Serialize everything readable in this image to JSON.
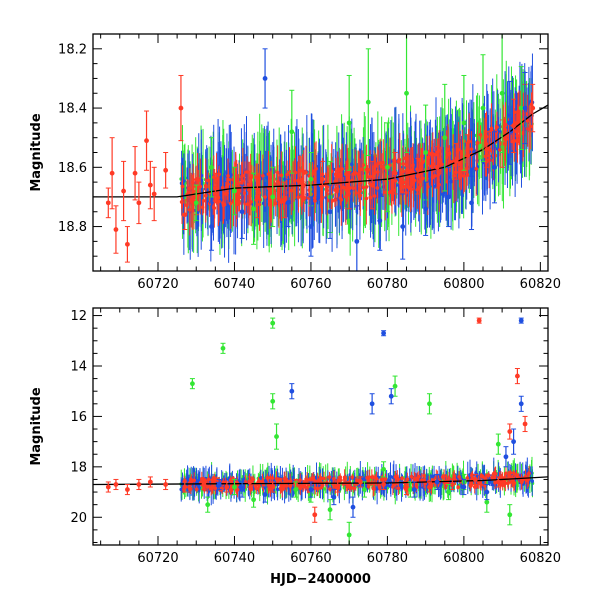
{
  "chart_data": [
    {
      "type": "scatter",
      "panel": "top",
      "title": "",
      "xlabel": "",
      "ylabel": "Magnitude",
      "xlim": [
        60703,
        60822
      ],
      "ylim": [
        18.95,
        18.15
      ],
      "y_inverted": true,
      "xticks": [
        60720,
        60740,
        60760,
        60780,
        60800,
        60820
      ],
      "xtick_labels": [
        "60720",
        "60740",
        "60760",
        "60780",
        "60800",
        "60820"
      ],
      "yticks": [
        18.2,
        18.4,
        18.6,
        18.8
      ],
      "ytick_labels": [
        "18.2",
        "18.4",
        "18.6",
        "18.8"
      ],
      "grid": false,
      "legend": "none",
      "colors": {
        "red": "#ff3a26",
        "green": "#33e633",
        "blue": "#1f4fe0",
        "model": "#000000"
      },
      "model_curve": {
        "x": [
          60703,
          60725,
          60740,
          60760,
          60780,
          60795,
          60805,
          60812,
          60818,
          60822
        ],
        "y": [
          18.7,
          18.7,
          18.67,
          18.66,
          18.64,
          18.6,
          18.54,
          18.48,
          18.42,
          18.39
        ]
      },
      "series": [
        {
          "color": "red",
          "x": [
            60707,
            60708,
            60709,
            60711,
            60712,
            60714,
            60715,
            60717,
            60718,
            60719,
            60722,
            60726,
            60727,
            60730,
            60735,
            60740,
            60746,
            60750,
            60753,
            60758,
            60763,
            60770,
            60776,
            60782,
            60788,
            60793,
            60798,
            60801,
            60806,
            60810,
            60813,
            60816,
            60818
          ],
          "y": [
            18.72,
            18.62,
            18.81,
            18.68,
            18.86,
            18.62,
            18.72,
            18.51,
            18.66,
            18.69,
            18.61,
            18.4,
            18.76,
            18.7,
            18.67,
            18.66,
            18.7,
            18.68,
            18.71,
            18.66,
            18.64,
            18.67,
            18.66,
            18.62,
            18.63,
            18.6,
            18.58,
            18.56,
            18.54,
            18.52,
            18.46,
            18.42,
            18.4
          ],
          "err": [
            0.05,
            0.12,
            0.08,
            0.1,
            0.06,
            0.09,
            0.07,
            0.1,
            0.08,
            0.09,
            0.06,
            0.11,
            0.05,
            0.06,
            0.05,
            0.06,
            0.07,
            0.05,
            0.06,
            0.05,
            0.06,
            0.07,
            0.08,
            0.07,
            0.06,
            0.07,
            0.06,
            0.07,
            0.06,
            0.08,
            0.09,
            0.1,
            0.08
          ]
        },
        {
          "color": "green",
          "x": [
            60730,
            60734,
            60740,
            60745,
            60750,
            60755,
            60760,
            60765,
            60770,
            60775,
            60780,
            60785,
            60790,
            60795,
            60800,
            60805,
            60810,
            60815
          ],
          "y": [
            18.72,
            18.6,
            18.68,
            18.74,
            18.7,
            18.48,
            18.64,
            18.7,
            18.45,
            18.38,
            18.6,
            18.35,
            18.55,
            18.5,
            18.45,
            18.4,
            18.35,
            18.4
          ],
          "err": [
            0.06,
            0.1,
            0.08,
            0.12,
            0.1,
            0.14,
            0.09,
            0.12,
            0.16,
            0.18,
            0.15,
            0.2,
            0.16,
            0.18,
            0.16,
            0.18,
            0.2,
            0.14
          ]
        },
        {
          "color": "blue",
          "x": [
            60734,
            60742,
            60748,
            60754,
            60760,
            60765,
            60772,
            60778,
            60784,
            60790,
            60796,
            60802,
            60808,
            60812,
            60816
          ],
          "y": [
            18.8,
            18.75,
            18.3,
            18.72,
            18.8,
            18.75,
            18.85,
            18.78,
            18.8,
            18.74,
            18.7,
            18.72,
            18.6,
            18.45,
            18.4
          ],
          "err": [
            0.08,
            0.09,
            0.1,
            0.08,
            0.1,
            0.09,
            0.12,
            0.1,
            0.11,
            0.09,
            0.1,
            0.09,
            0.12,
            0.14,
            0.12
          ]
        }
      ]
    },
    {
      "type": "scatter",
      "panel": "bottom",
      "title": "",
      "xlabel": "HJD−2400000",
      "ylabel": "Magnitude",
      "xlim": [
        60703,
        60822
      ],
      "ylim": [
        21.1,
        11.7
      ],
      "y_inverted": true,
      "xticks": [
        60720,
        60740,
        60760,
        60780,
        60800,
        60820
      ],
      "xtick_labels": [
        "60720",
        "60740",
        "60760",
        "60780",
        "60800",
        "60820"
      ],
      "yticks": [
        12,
        14,
        16,
        18,
        20
      ],
      "ytick_labels": [
        "12",
        "14",
        "16",
        "18",
        "20"
      ],
      "grid": false,
      "legend": "none",
      "colors": {
        "red": "#ff3a26",
        "green": "#33e633",
        "blue": "#1f4fe0",
        "model": "#000000"
      },
      "model_curve": {
        "x": [
          60703,
          60740,
          60780,
          60805,
          60822
        ],
        "y": [
          18.7,
          18.67,
          18.64,
          18.54,
          18.4
        ]
      },
      "series": [
        {
          "color": "red",
          "x": [
            60707,
            60709,
            60712,
            60715,
            60718,
            60722,
            60727,
            60732,
            60738,
            60744,
            60750,
            60756,
            60761,
            60767,
            60773,
            60779,
            60785,
            60791,
            60797,
            60803,
            60804,
            60809,
            60812,
            60814,
            60816
          ],
          "y": [
            18.8,
            18.7,
            18.9,
            18.7,
            18.6,
            18.7,
            18.8,
            18.7,
            18.8,
            18.6,
            18.8,
            18.7,
            19.9,
            18.8,
            18.6,
            18.7,
            18.9,
            18.8,
            18.7,
            18.5,
            12.2,
            18.6,
            16.6,
            14.4,
            16.3
          ],
          "err": [
            0.2,
            0.2,
            0.2,
            0.2,
            0.2,
            0.2,
            0.2,
            0.2,
            0.2,
            0.2,
            0.2,
            0.2,
            0.3,
            0.2,
            0.2,
            0.2,
            0.2,
            0.2,
            0.2,
            0.2,
            0.1,
            0.2,
            0.3,
            0.3,
            0.3
          ]
        },
        {
          "color": "green",
          "x": [
            60729,
            60733,
            60737,
            60740,
            60745,
            60750,
            60750,
            60751,
            60756,
            60760,
            60765,
            60770,
            60774,
            60779,
            60782,
            60786,
            60791,
            60796,
            60800,
            60806,
            60809,
            60812
          ],
          "y": [
            14.7,
            19.5,
            13.3,
            18.8,
            19.3,
            12.3,
            15.4,
            16.8,
            18.9,
            19.1,
            19.7,
            20.7,
            18.9,
            18.1,
            14.8,
            18.9,
            15.5,
            19.0,
            18.6,
            19.4,
            17.1,
            19.9
          ],
          "err": [
            0.2,
            0.3,
            0.2,
            0.3,
            0.3,
            0.2,
            0.3,
            0.5,
            0.3,
            0.3,
            0.4,
            0.5,
            0.3,
            0.3,
            0.4,
            0.3,
            0.4,
            0.3,
            0.3,
            0.4,
            0.4,
            0.4
          ]
        },
        {
          "color": "blue",
          "x": [
            60736,
            60742,
            60748,
            60755,
            60760,
            60766,
            60771,
            60776,
            60779,
            60781,
            60787,
            60793,
            60800,
            60806,
            60811,
            60813,
            60815,
            60815
          ],
          "y": [
            18.7,
            18.9,
            19.1,
            15.0,
            18.9,
            19.2,
            19.6,
            15.5,
            12.7,
            15.2,
            18.9,
            18.6,
            18.8,
            19.0,
            17.6,
            17.0,
            15.5,
            12.2
          ],
          "err": [
            0.2,
            0.3,
            0.3,
            0.3,
            0.3,
            0.3,
            0.4,
            0.4,
            0.1,
            0.3,
            0.3,
            0.3,
            0.3,
            0.3,
            0.4,
            0.5,
            0.3,
            0.1
          ]
        }
      ]
    }
  ]
}
